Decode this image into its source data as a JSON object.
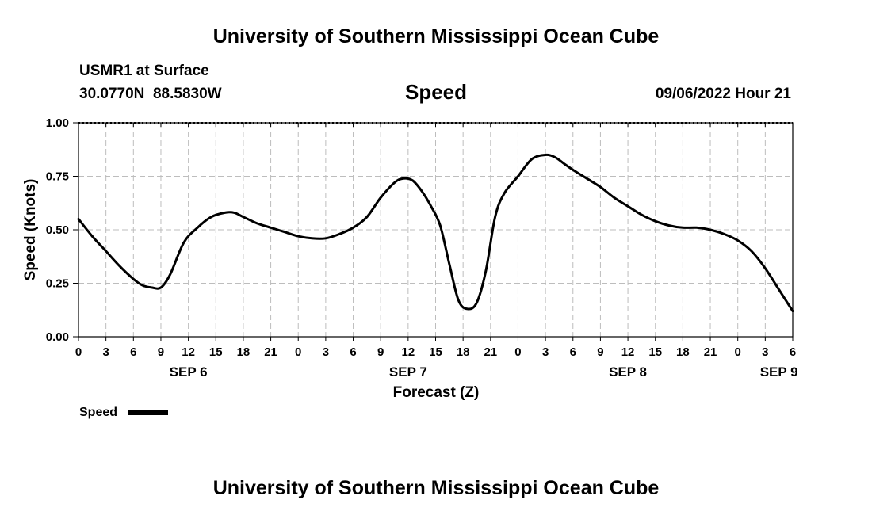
{
  "header": {
    "title": "University of Southern Mississippi Ocean Cube",
    "station": "USMR1 at Surface",
    "coords": "30.0770N  88.5830W",
    "variable": "Speed",
    "timestamp": "09/06/2022 Hour 21"
  },
  "footer": {
    "title": "University of Southern Mississippi Ocean Cube"
  },
  "legend": {
    "label": "Speed"
  },
  "chart_data": {
    "type": "line",
    "title": "Speed",
    "xlabel": "Forecast (Z)",
    "ylabel": "Speed (Knots)",
    "ylim": [
      0,
      1
    ],
    "xlim": [
      0,
      78
    ],
    "grid": true,
    "legend_position": "bottom-left",
    "y_ticks": [
      {
        "value": 0,
        "label": "0.00"
      },
      {
        "value": 0.25,
        "label": "0.25"
      },
      {
        "value": 0.5,
        "label": "0.50"
      },
      {
        "value": 0.75,
        "label": "0.75"
      },
      {
        "value": 1,
        "label": "1.00"
      }
    ],
    "x_ticks": [
      "0",
      "3",
      "6",
      "9",
      "12",
      "15",
      "18",
      "21",
      "0",
      "3",
      "6",
      "9",
      "12",
      "15",
      "18",
      "21",
      "0",
      "3",
      "6",
      "9",
      "12",
      "15",
      "18",
      "21",
      "0",
      "3",
      "6"
    ],
    "day_labels": [
      {
        "hour": 12,
        "label": "SEP 6"
      },
      {
        "hour": 36,
        "label": "SEP 7"
      },
      {
        "hour": 60,
        "label": "SEP 8"
      },
      {
        "hour": 76.5,
        "label": "SEP 9"
      }
    ],
    "series": [
      {
        "name": "Speed",
        "color": "#000000",
        "x": [
          0,
          1.5,
          3,
          4.5,
          6,
          7,
          8,
          9,
          10,
          11.5,
          13,
          14.5,
          16,
          17,
          18,
          19.5,
          21,
          22.5,
          24,
          25.5,
          27,
          28.5,
          30,
          31.5,
          33,
          34.5,
          35.5,
          36.5,
          37.5,
          38.5,
          39.5,
          40.5,
          41.5,
          42.5,
          43.5,
          44.5,
          45.5,
          46.5,
          48,
          49.5,
          51,
          52,
          53,
          54,
          55.5,
          57,
          58.5,
          60,
          61.5,
          63,
          64.5,
          66,
          67.5,
          69,
          70.5,
          72,
          73.5,
          75,
          76.5,
          78
        ],
        "y": [
          0.55,
          0.47,
          0.4,
          0.33,
          0.27,
          0.24,
          0.23,
          0.23,
          0.29,
          0.44,
          0.51,
          0.56,
          0.58,
          0.58,
          0.56,
          0.53,
          0.51,
          0.49,
          0.47,
          0.46,
          0.46,
          0.48,
          0.51,
          0.56,
          0.65,
          0.72,
          0.74,
          0.73,
          0.68,
          0.61,
          0.52,
          0.34,
          0.17,
          0.13,
          0.16,
          0.31,
          0.56,
          0.67,
          0.75,
          0.83,
          0.85,
          0.84,
          0.81,
          0.78,
          0.74,
          0.7,
          0.65,
          0.61,
          0.57,
          0.54,
          0.52,
          0.51,
          0.51,
          0.5,
          0.48,
          0.45,
          0.4,
          0.32,
          0.22,
          0.12
        ]
      }
    ]
  }
}
